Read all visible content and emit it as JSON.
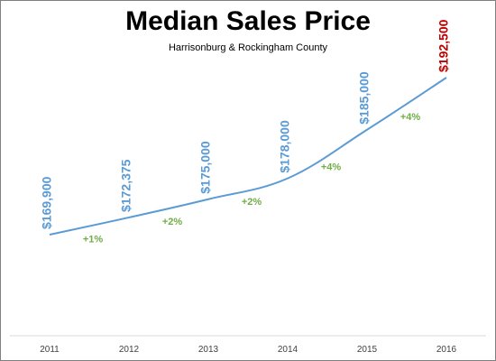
{
  "chart_data": {
    "type": "line",
    "title": "Median Sales Price",
    "subtitle": "Harrisonburg & Rockingham County",
    "x": [
      "2011",
      "2012",
      "2013",
      "2014",
      "2015",
      "2016"
    ],
    "series": [
      {
        "values": [
          169900,
          172375,
          175000,
          178000,
          185000,
          192500
        ],
        "labels": [
          "$169,900",
          "$172,375",
          "$175,000",
          "$178,000",
          "$185,000",
          "$192,500"
        ],
        "label_colors": [
          "#5b9bd5",
          "#5b9bd5",
          "#5b9bd5",
          "#5b9bd5",
          "#5b9bd5",
          "#c00000"
        ]
      }
    ],
    "changes": [
      "+1%",
      "+2%",
      "+2%",
      "+4%",
      "+4%"
    ],
    "ylim": [
      160000,
      196000
    ],
    "grid": false,
    "legend": "none",
    "xlabel": "",
    "ylabel": ""
  },
  "colors": {
    "line": "#5b9bd5",
    "value_label": "#5b9bd5",
    "highlight_label": "#c00000",
    "change_label": "#70ad47",
    "axis": "#d9d9d9",
    "tick_text": "#404040"
  }
}
